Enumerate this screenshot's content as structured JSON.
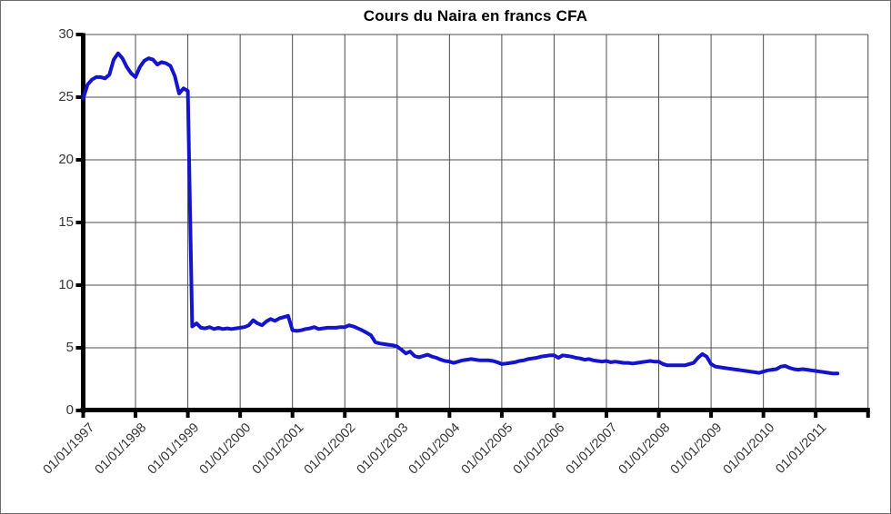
{
  "title": "Cours du Naira en francs CFA",
  "colors": {
    "line": "#1414cc",
    "grid": "#4d4d4d",
    "axis": "#000000",
    "label_text": "#373737",
    "frame": "#6b6b6b",
    "background": "#ffffff"
  },
  "chart_data": {
    "type": "line",
    "title": "Cours du Naira en francs CFA",
    "xlabel": "",
    "ylabel": "",
    "grid": true,
    "legend": "none",
    "ylim": [
      0,
      30
    ],
    "y_ticks": [
      0,
      5,
      10,
      15,
      20,
      25,
      30
    ],
    "x_range": [
      "01/01/1997",
      "01/01/2012"
    ],
    "x_tick_labels": [
      "01/01/1997",
      "01/01/1998",
      "01/01/1999",
      "01/01/2000",
      "01/01/2001",
      "01/01/2002",
      "01/01/2003",
      "01/01/2004",
      "01/01/2005",
      "01/01/2006",
      "01/01/2007",
      "01/01/2008",
      "01/01/2009",
      "01/01/2010",
      "01/01/2011"
    ],
    "series": [
      {
        "name": "Cours du Naira en francs CFA",
        "frequency": "monthly",
        "start": "01/1997",
        "end": "06/2011",
        "values": [
          24.9,
          26.0,
          26.4,
          26.6,
          26.6,
          26.5,
          26.8,
          28.0,
          28.5,
          28.1,
          27.4,
          26.9,
          26.6,
          27.4,
          27.9,
          28.1,
          28.0,
          27.6,
          27.8,
          27.7,
          27.5,
          26.7,
          25.3,
          25.7,
          25.5,
          6.7,
          6.95,
          6.6,
          6.55,
          6.65,
          6.5,
          6.6,
          6.5,
          6.55,
          6.5,
          6.55,
          6.6,
          6.65,
          6.8,
          7.2,
          6.95,
          6.8,
          7.1,
          7.3,
          7.15,
          7.35,
          7.45,
          7.55,
          6.4,
          6.35,
          6.4,
          6.5,
          6.55,
          6.65,
          6.5,
          6.55,
          6.6,
          6.6,
          6.6,
          6.65,
          6.65,
          6.8,
          6.7,
          6.55,
          6.4,
          6.2,
          6.0,
          5.45,
          5.35,
          5.3,
          5.25,
          5.2,
          5.1,
          4.85,
          4.55,
          4.7,
          4.35,
          4.25,
          4.35,
          4.45,
          4.3,
          4.2,
          4.05,
          3.95,
          3.9,
          3.8,
          3.9,
          4.0,
          4.05,
          4.1,
          4.05,
          4.0,
          4.0,
          4.0,
          3.95,
          3.85,
          3.7,
          3.75,
          3.8,
          3.85,
          3.95,
          4.0,
          4.1,
          4.15,
          4.2,
          4.3,
          4.35,
          4.4,
          4.4,
          4.2,
          4.4,
          4.35,
          4.3,
          4.2,
          4.15,
          4.05,
          4.1,
          4.0,
          3.95,
          3.9,
          3.95,
          3.85,
          3.9,
          3.85,
          3.8,
          3.8,
          3.75,
          3.8,
          3.85,
          3.9,
          3.95,
          3.9,
          3.9,
          3.7,
          3.6,
          3.6,
          3.6,
          3.6,
          3.6,
          3.7,
          3.8,
          4.2,
          4.5,
          4.3,
          3.7,
          3.5,
          3.45,
          3.4,
          3.35,
          3.3,
          3.25,
          3.2,
          3.15,
          3.1,
          3.05,
          3.0,
          3.1,
          3.2,
          3.25,
          3.3,
          3.5,
          3.55,
          3.4,
          3.3,
          3.25,
          3.3,
          3.25,
          3.2,
          3.15,
          3.1,
          3.05,
          3.0,
          2.95,
          2.95
        ]
      }
    ]
  }
}
